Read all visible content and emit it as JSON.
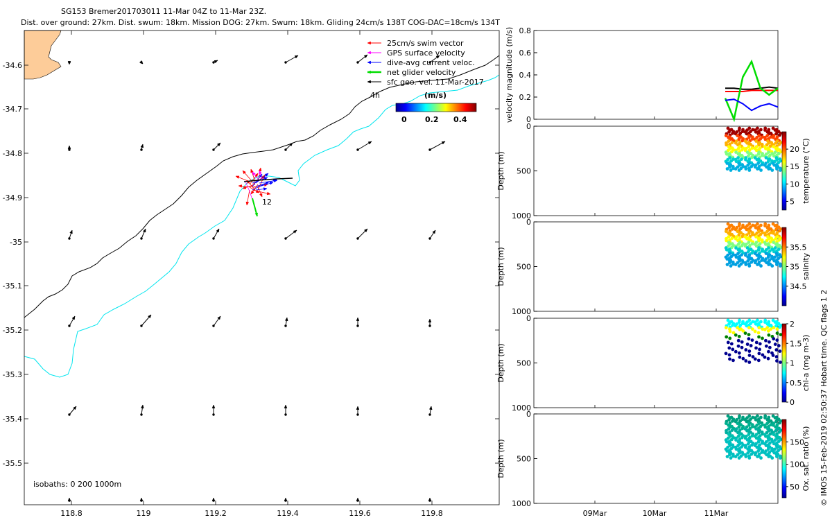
{
  "title": {
    "line1": "SG153 Bremer201703011 11-Mar 04Z to 11-Mar 23Z.",
    "line2": "Dist. over ground: 27km. Dist. swum: 18km. Mission DOG: 27km. Swum: 18km. Gliding 24cm/s 138T COG-DAC=18cm/s 134T"
  },
  "map": {
    "lon_ticks": [
      "118.8",
      "119",
      "119.2",
      "119.4",
      "119.6",
      "119.8"
    ],
    "lat_ticks": [
      "-34.6",
      "-34.7",
      "-34.8",
      "-34.9",
      "-35",
      "-35.1",
      "-35.2",
      "-35.3",
      "-35.4",
      "-35.5"
    ],
    "legend": [
      {
        "label": "25cm/s swim vector",
        "color": "#ff0000"
      },
      {
        "label": "GPS surface velocity",
        "color": "#ff00ff"
      },
      {
        "label": "dive-avg current veloc.",
        "color": "#0000ff"
      },
      {
        "label": "net glider velocity",
        "color": "#00dd00"
      },
      {
        "label": "sfc geo. vel. 11-Mar-2017",
        "color": "#000000"
      }
    ],
    "colorbar": {
      "title": "(m/s)",
      "ticks": [
        "0",
        "0.2",
        "0.4"
      ]
    },
    "annotations": {
      "start_label": "4h",
      "end_label": "12"
    },
    "isobaths": "isobaths: 0   200  1000m",
    "colors": {
      "land": "#fdcc99",
      "isobath_200": "#000000",
      "isobath_1000": "#00e5ee"
    }
  },
  "chart_data": [
    {
      "type": "line",
      "title": "velocity magnitude",
      "ylabel": "velocity magnitude (m/s)",
      "ylim": [
        0,
        0.8
      ],
      "yticks": [
        "0",
        "0.2",
        "0.4",
        "0.6",
        "0.8"
      ],
      "series": [
        {
          "name": "sfc geo. vel.",
          "color": "#000000",
          "values": [
            0.28,
            0.28,
            0.27,
            0.27,
            0.28,
            0.29,
            0.28
          ]
        },
        {
          "name": "swim vector",
          "color": "#ff0000",
          "values": [
            0.25,
            0.25,
            0.25,
            0.26,
            0.26,
            0.26,
            0.26
          ]
        },
        {
          "name": "net glider velocity",
          "color": "#00dd00",
          "values": [
            0.19,
            0.0,
            0.38,
            0.52,
            0.28,
            0.22,
            0.28
          ]
        },
        {
          "name": "dive-avg current",
          "color": "#0000ff",
          "values": [
            0.17,
            0.18,
            0.14,
            0.08,
            0.12,
            0.14,
            0.11
          ]
        }
      ]
    },
    {
      "type": "scatter",
      "ylabel": "Depth (m)",
      "cblabel": "temperature (°C)",
      "cbticks": [
        "5",
        "10",
        "15",
        "20"
      ],
      "ylim": [
        1000,
        0
      ],
      "yticks": [
        "0",
        "500",
        "1000"
      ],
      "max_depth": 500
    },
    {
      "type": "scatter",
      "ylabel": "Depth (m)",
      "cblabel": "salinity",
      "cbticks": [
        "34.5",
        "35",
        "35.5"
      ],
      "ylim": [
        1000,
        0
      ],
      "yticks": [
        "0",
        "500",
        "1000"
      ],
      "max_depth": 500
    },
    {
      "type": "scatter",
      "ylabel": "Depth (m)",
      "cblabel": "chl-a (mg m-3)",
      "cbticks": [
        "0",
        "0.5",
        "1",
        "1.5",
        "2"
      ],
      "ylim": [
        1000,
        0
      ],
      "yticks": [
        "0",
        "500",
        "1000"
      ],
      "max_depth": 500
    },
    {
      "type": "scatter",
      "ylabel": "Depth (m)",
      "cblabel": "Ox. sat. ratio (%)",
      "cbticks": [
        "50",
        "100",
        "150"
      ],
      "ylim": [
        1000,
        0
      ],
      "yticks": [
        "0",
        "500",
        "1000"
      ],
      "max_depth": 500
    }
  ],
  "time_axis": {
    "ticks": [
      "09Mar",
      "10Mar",
      "11Mar"
    ]
  },
  "credit": "© IMOS 15-Feb-2019 02:50:37 Hobart time. QC flags 1  2"
}
